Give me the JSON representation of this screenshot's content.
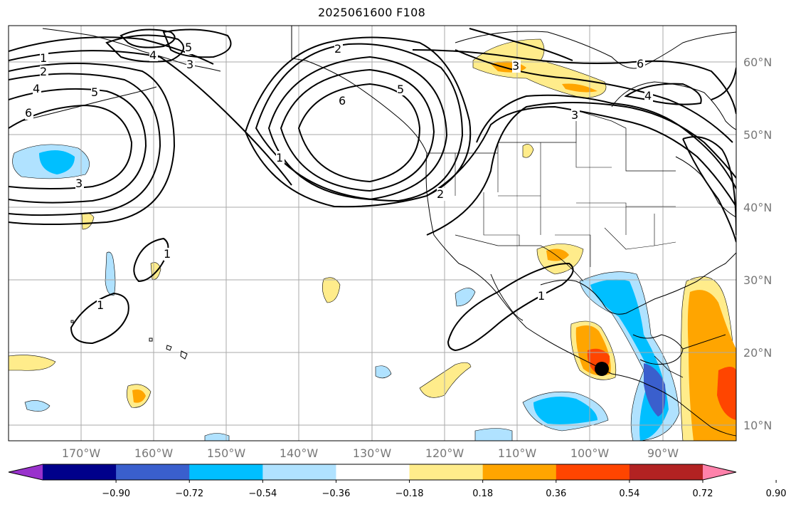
{
  "title": "2025061600 F108",
  "lat_labels": [
    "60°N",
    "50°N",
    "40°N",
    "30°N",
    "20°N",
    "10°N"
  ],
  "lon_labels": [
    "170°W",
    "160°W",
    "150°W",
    "140°W",
    "130°W",
    "120°W",
    "110°W",
    "100°W",
    "90°W"
  ],
  "colorbar": {
    "tick_labels": [
      "−0.90",
      "−0.72",
      "−0.54",
      "−0.36",
      "−0.18",
      "0.18",
      "0.36",
      "0.54",
      "0.72",
      "0.90"
    ],
    "colors": [
      "#9932cc",
      "#00008b",
      "#3a5fcd",
      "#00bfff",
      "#b0e2ff",
      "#ffffff",
      "#ffec8b",
      "#ffa500",
      "#ff4500",
      "#b22222",
      "#ff82ab"
    ]
  },
  "contour_labels": [
    "1",
    "2",
    "4",
    "5",
    "6",
    "3",
    "5",
    "3",
    "4",
    "6",
    "2",
    "5",
    "6",
    "1",
    "3",
    "2",
    "3",
    "6",
    "4",
    "1",
    "1",
    "1"
  ],
  "marker": {
    "label": "storm-center"
  }
}
